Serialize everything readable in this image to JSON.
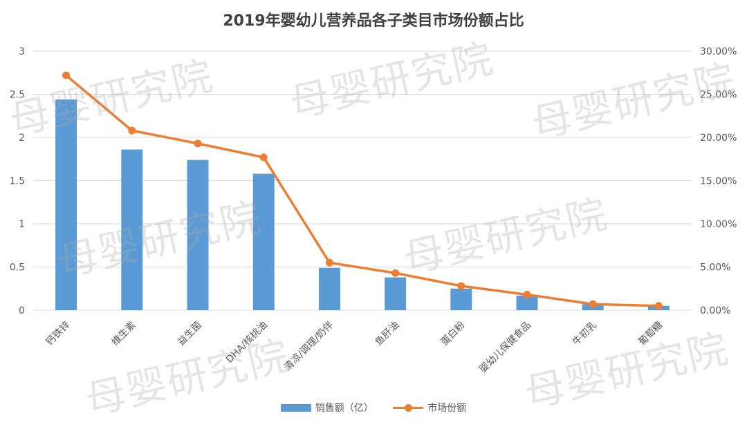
{
  "title": "2019年婴幼儿营养品各子类目市场份额占比",
  "watermark_text": "母婴研究院",
  "colors": {
    "bar": "#5B9BD5",
    "line": "#ED7D31",
    "grid": "#D9D9D9",
    "axis_text": "#595959"
  },
  "chart_data": {
    "type": "bar",
    "combo": "bar+line (secondary axis)",
    "title": "2019年婴幼儿营养品各子类目市场份额占比",
    "categories": [
      "钙铁锌",
      "维生素",
      "益生菌",
      "DHA/核桃油",
      "清凉/调理/奶伴",
      "鱼肝油",
      "蛋白粉",
      "婴幼儿保健食品",
      "牛初乳",
      "葡萄糖"
    ],
    "series": [
      {
        "name": "销售额（亿）",
        "type": "bar",
        "axis": "left",
        "values": [
          2.44,
          1.86,
          1.74,
          1.58,
          0.49,
          0.38,
          0.25,
          0.17,
          0.07,
          0.05
        ]
      },
      {
        "name": "市场份额",
        "type": "line",
        "axis": "right",
        "values": [
          27.2,
          20.8,
          19.3,
          17.7,
          5.5,
          4.3,
          2.8,
          1.8,
          0.7,
          0.5
        ]
      }
    ],
    "left_axis": {
      "ylim": [
        0,
        3
      ],
      "ticks": [
        "0",
        "0.5",
        "1",
        "1.5",
        "2",
        "2.5",
        "3"
      ]
    },
    "right_axis": {
      "ylim": [
        0,
        30
      ],
      "ticks": [
        "0.00%",
        "5.00%",
        "10.00%",
        "15.00%",
        "20.00%",
        "25.00%",
        "30.00%"
      ]
    },
    "grid": true,
    "legend_position": "bottom"
  }
}
